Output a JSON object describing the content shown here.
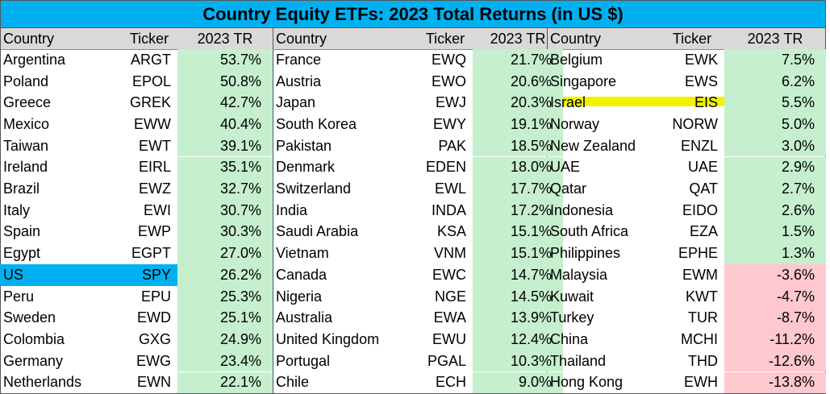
{
  "title": "Country Equity ETFs: 2023 Total Returns (in US $)",
  "headers": {
    "country": "Country",
    "ticker": "Ticker",
    "tr": "2023 TR"
  },
  "colors": {
    "title_bg": "#00B0F0",
    "header_bg": "#D9D9D9",
    "positive_bg": "#C6EFCE",
    "negative_bg": "#FFC7CE",
    "us_highlight": "#00B0F0",
    "israel_highlight": "#F2F200"
  },
  "chart_data": {
    "type": "table",
    "title": "Country Equity ETFs: 2023 Total Returns (in US $)",
    "columns": [
      "Country",
      "Ticker",
      "2023 TR"
    ],
    "rows": [
      {
        "country": "Argentina",
        "ticker": "ARGT",
        "tr_label": "53.7%",
        "tr": 53.7
      },
      {
        "country": "Poland",
        "ticker": "EPOL",
        "tr_label": "50.8%",
        "tr": 50.8
      },
      {
        "country": "Greece",
        "ticker": "GREK",
        "tr_label": "42.7%",
        "tr": 42.7
      },
      {
        "country": "Mexico",
        "ticker": "EWW",
        "tr_label": "40.4%",
        "tr": 40.4
      },
      {
        "country": "Taiwan",
        "ticker": "EWT",
        "tr_label": "39.1%",
        "tr": 39.1
      },
      {
        "country": "Ireland",
        "ticker": "EIRL",
        "tr_label": "35.1%",
        "tr": 35.1
      },
      {
        "country": "Brazil",
        "ticker": "EWZ",
        "tr_label": "32.7%",
        "tr": 32.7
      },
      {
        "country": "Italy",
        "ticker": "EWI",
        "tr_label": "30.7%",
        "tr": 30.7
      },
      {
        "country": "Spain",
        "ticker": "EWP",
        "tr_label": "30.3%",
        "tr": 30.3
      },
      {
        "country": "Egypt",
        "ticker": "EGPT",
        "tr_label": "27.0%",
        "tr": 27.0
      },
      {
        "country": "US",
        "ticker": "SPY",
        "tr_label": "26.2%",
        "tr": 26.2,
        "highlight": "blue"
      },
      {
        "country": "Peru",
        "ticker": "EPU",
        "tr_label": "25.3%",
        "tr": 25.3
      },
      {
        "country": "Sweden",
        "ticker": "EWD",
        "tr_label": "25.1%",
        "tr": 25.1
      },
      {
        "country": "Colombia",
        "ticker": "GXG",
        "tr_label": "24.9%",
        "tr": 24.9
      },
      {
        "country": "Germany",
        "ticker": "EWG",
        "tr_label": "23.4%",
        "tr": 23.4
      },
      {
        "country": "Netherlands",
        "ticker": "EWN",
        "tr_label": "22.1%",
        "tr": 22.1
      },
      {
        "country": "France",
        "ticker": "EWQ",
        "tr_label": "21.7%",
        "tr": 21.7
      },
      {
        "country": "Austria",
        "ticker": "EWO",
        "tr_label": "20.6%",
        "tr": 20.6
      },
      {
        "country": "Japan",
        "ticker": "EWJ",
        "tr_label": "20.3%",
        "tr": 20.3
      },
      {
        "country": "South Korea",
        "ticker": "EWY",
        "tr_label": "19.1%",
        "tr": 19.1
      },
      {
        "country": "Pakistan",
        "ticker": "PAK",
        "tr_label": "18.5%",
        "tr": 18.5
      },
      {
        "country": "Denmark",
        "ticker": "EDEN",
        "tr_label": "18.0%",
        "tr": 18.0
      },
      {
        "country": "Switzerland",
        "ticker": "EWL",
        "tr_label": "17.7%",
        "tr": 17.7
      },
      {
        "country": "India",
        "ticker": "INDA",
        "tr_label": "17.2%",
        "tr": 17.2
      },
      {
        "country": "Saudi Arabia",
        "ticker": "KSA",
        "tr_label": "15.1%",
        "tr": 15.1
      },
      {
        "country": "Vietnam",
        "ticker": "VNM",
        "tr_label": "15.1%",
        "tr": 15.1
      },
      {
        "country": "Canada",
        "ticker": "EWC",
        "tr_label": "14.7%",
        "tr": 14.7
      },
      {
        "country": "Nigeria",
        "ticker": "NGE",
        "tr_label": "14.5%",
        "tr": 14.5
      },
      {
        "country": "Australia",
        "ticker": "EWA",
        "tr_label": "13.9%",
        "tr": 13.9
      },
      {
        "country": "United Kingdom",
        "ticker": "EWU",
        "tr_label": "12.4%",
        "tr": 12.4
      },
      {
        "country": "Portugal",
        "ticker": "PGAL",
        "tr_label": "10.3%",
        "tr": 10.3
      },
      {
        "country": "Chile",
        "ticker": "ECH",
        "tr_label": "9.0%",
        "tr": 9.0
      },
      {
        "country": "Belgium",
        "ticker": "EWK",
        "tr_label": "7.5%",
        "tr": 7.5
      },
      {
        "country": "Singapore",
        "ticker": "EWS",
        "tr_label": "6.2%",
        "tr": 6.2
      },
      {
        "country": "Israel",
        "ticker": "EIS",
        "tr_label": "5.5%",
        "tr": 5.5,
        "highlight": "yellow"
      },
      {
        "country": "Norway",
        "ticker": "NORW",
        "tr_label": "5.0%",
        "tr": 5.0
      },
      {
        "country": "New Zealand",
        "ticker": "ENZL",
        "tr_label": "3.0%",
        "tr": 3.0
      },
      {
        "country": "UAE",
        "ticker": "UAE",
        "tr_label": "2.9%",
        "tr": 2.9
      },
      {
        "country": "Qatar",
        "ticker": "QAT",
        "tr_label": "2.7%",
        "tr": 2.7
      },
      {
        "country": "Indonesia",
        "ticker": "EIDO",
        "tr_label": "2.6%",
        "tr": 2.6
      },
      {
        "country": "South Africa",
        "ticker": "EZA",
        "tr_label": "1.5%",
        "tr": 1.5
      },
      {
        "country": "Philippines",
        "ticker": "EPHE",
        "tr_label": "1.3%",
        "tr": 1.3
      },
      {
        "country": "Malaysia",
        "ticker": "EWM",
        "tr_label": "-3.6%",
        "tr": -3.6
      },
      {
        "country": "Kuwait",
        "ticker": "KWT",
        "tr_label": "-4.7%",
        "tr": -4.7
      },
      {
        "country": "Turkey",
        "ticker": "TUR",
        "tr_label": "-8.7%",
        "tr": -8.7
      },
      {
        "country": "China",
        "ticker": "MCHI",
        "tr_label": "-11.2%",
        "tr": -11.2
      },
      {
        "country": "Thailand",
        "ticker": "THD",
        "tr_label": "-12.6%",
        "tr": -12.6
      },
      {
        "country": "Hong Kong",
        "ticker": "EWH",
        "tr_label": "-13.8%",
        "tr": -13.8
      }
    ]
  }
}
